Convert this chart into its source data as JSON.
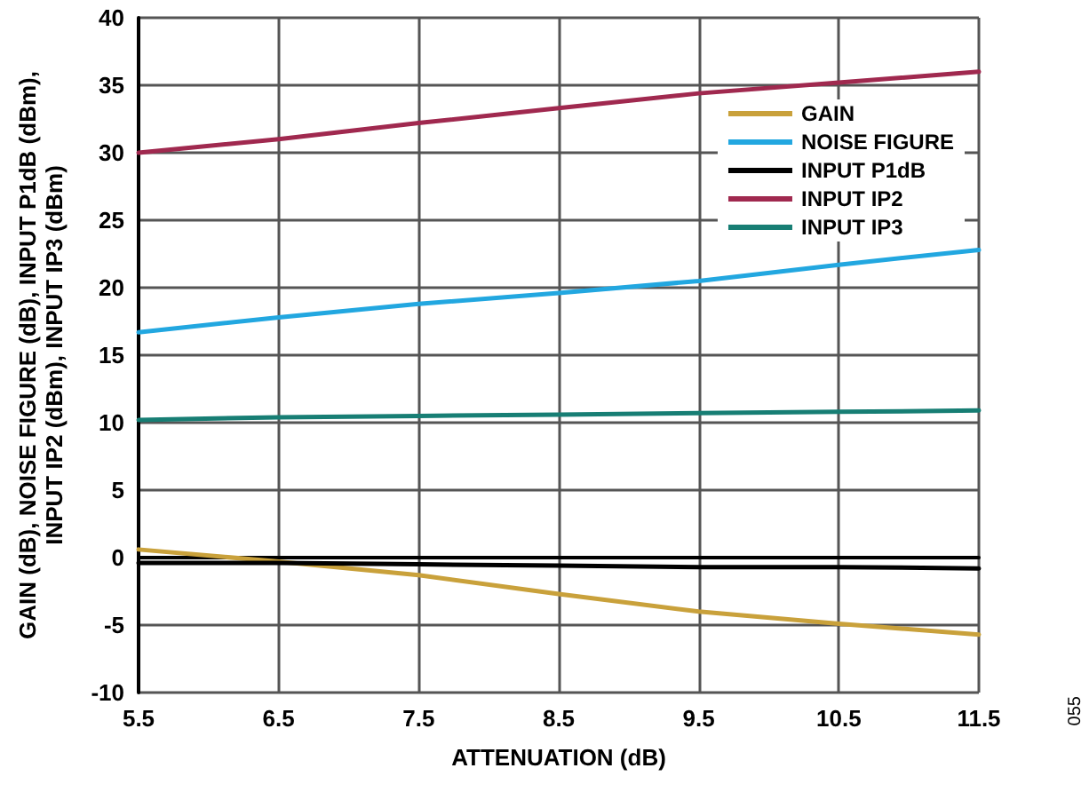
{
  "chart_data": {
    "type": "line",
    "xlabel": "ATTENUATION (dB)",
    "ylabel": "GAIN (dB), NOISE FIGURE (dB), INPUT P1dB (dBm),\nINPUT IP2 (dBm), INPUT IP3 (dBm)",
    "x": [
      5.5,
      6.5,
      7.5,
      8.5,
      9.5,
      10.5,
      11.5
    ],
    "series": [
      {
        "name": "GAIN",
        "color": "#c9a13b",
        "values": [
          0.6,
          -0.3,
          -1.3,
          -2.7,
          -4.0,
          -4.9,
          -5.7
        ]
      },
      {
        "name": "NOISE FIGURE",
        "color": "#22a7e0",
        "values": [
          16.7,
          17.8,
          18.8,
          19.6,
          20.5,
          21.7,
          22.8
        ]
      },
      {
        "name": "INPUT P1dB",
        "color": "#000000",
        "values": [
          -0.4,
          -0.4,
          -0.5,
          -0.6,
          -0.7,
          -0.7,
          -0.8
        ]
      },
      {
        "name": "INPUT IP2",
        "color": "#a0294f",
        "values": [
          30.0,
          31.0,
          32.2,
          33.3,
          34.4,
          35.2,
          36.0
        ]
      },
      {
        "name": "INPUT IP3",
        "color": "#177e74",
        "values": [
          10.2,
          10.4,
          10.5,
          10.6,
          10.7,
          10.8,
          10.9
        ]
      }
    ],
    "xlim": [
      5.5,
      11.5
    ],
    "xticks": [
      5.5,
      6.5,
      7.5,
      8.5,
      9.5,
      10.5,
      11.5
    ],
    "ylim": [
      -10,
      40
    ],
    "yticks": [
      -10,
      -5,
      0,
      5,
      10,
      15,
      20,
      25,
      30,
      35,
      40
    ],
    "grid": true,
    "legend": "top right",
    "marker": "none",
    "line_style": "solid",
    "annotations": [
      "055"
    ]
  }
}
